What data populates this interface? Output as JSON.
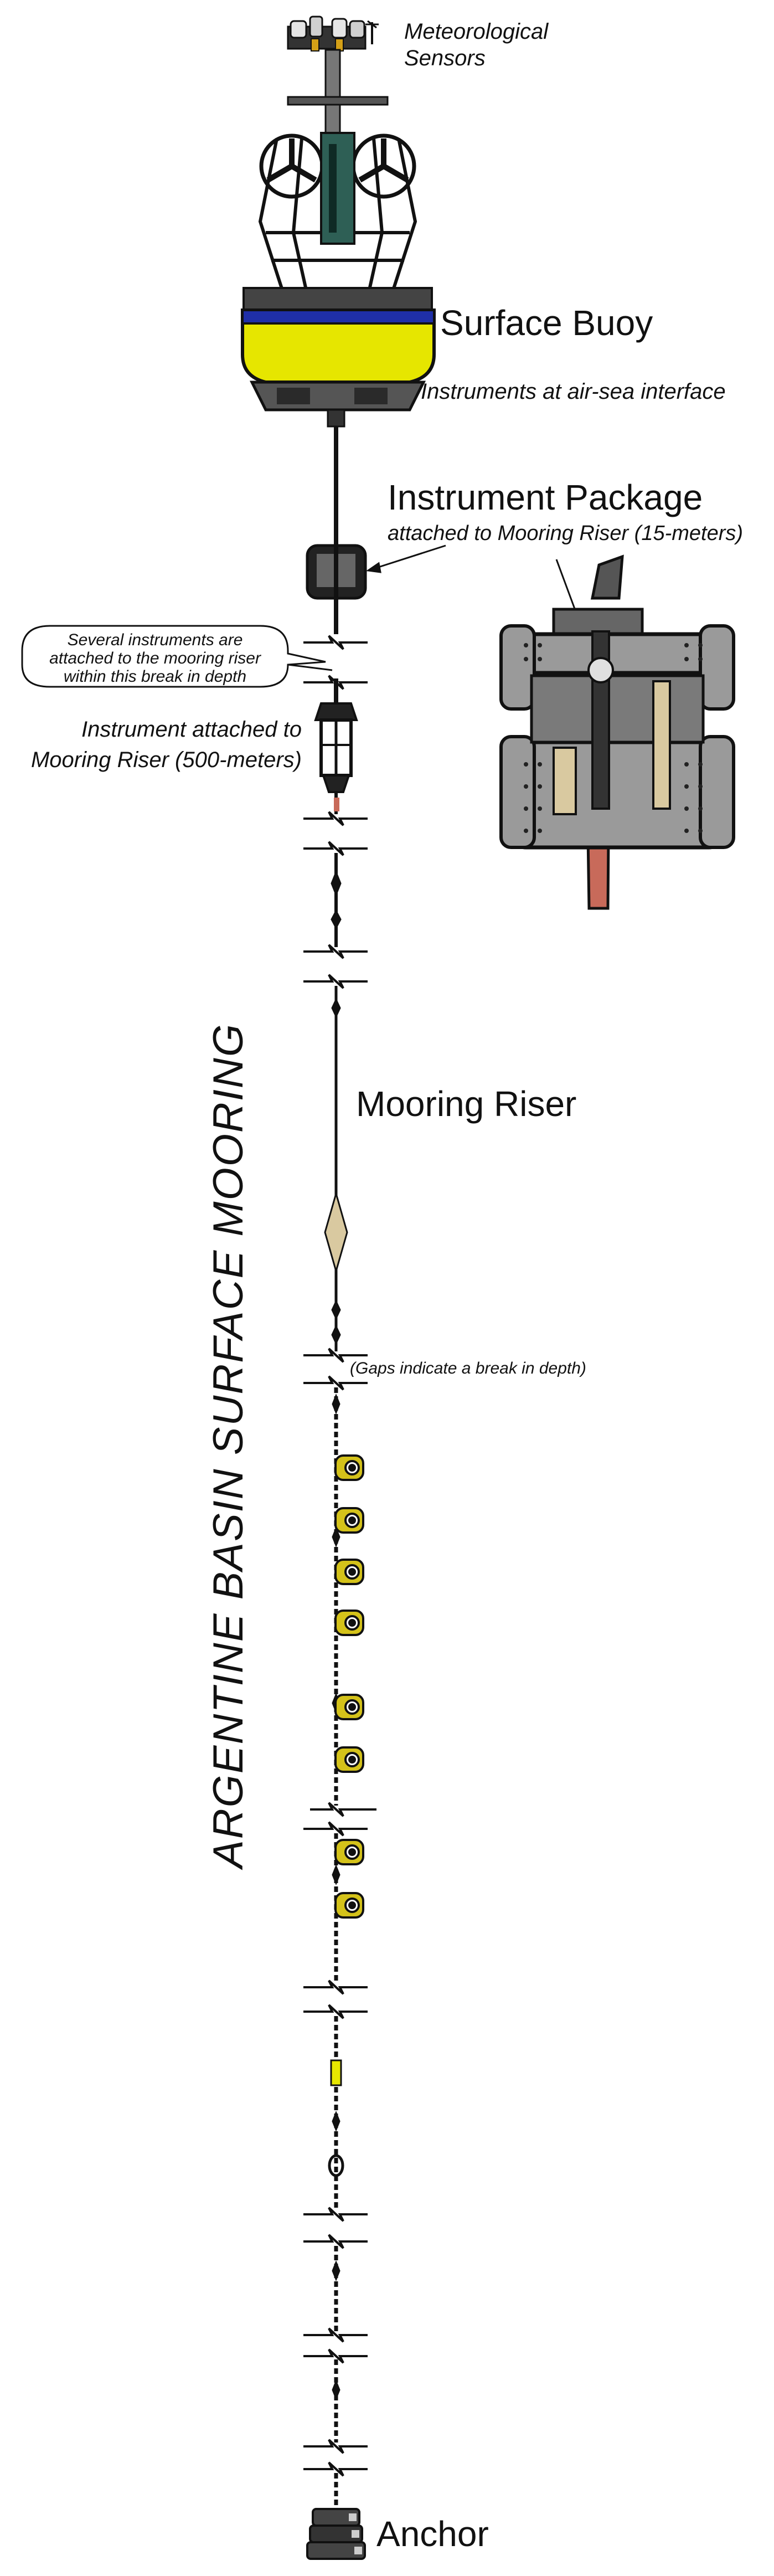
{
  "title": "ARGENTINE BASIN SURFACE MOORING",
  "labels": {
    "met_sensors_line1": "Meteorological",
    "met_sensors_line2": "Sensors",
    "surface_buoy": "Surface Buoy",
    "air_sea": "Instruments at air-sea interface",
    "instrument_package": "Instrument Package",
    "instrument_package_sub": "attached to Mooring Riser (15-meters)",
    "callout_line1": "Several instruments are",
    "callout_line2": "attached to the mooring riser",
    "callout_line3": "within this break in depth",
    "riser_instrument_line1": "Instrument attached to",
    "riser_instrument_line2": "Mooring Riser (500-meters)",
    "mooring_riser": "Mooring Riser",
    "gaps_note": "(Gaps indicate a break in depth)",
    "anchor": "Anchor"
  },
  "colors": {
    "buoy_yellow": "#e6e600",
    "buoy_blue": "#1f2fa8",
    "float_yellow": "#d4c21a",
    "frame_gray": "#9a9a9a",
    "line_black": "#111111",
    "tan": "#d9c9a0",
    "red_tail": "#c86a5a"
  }
}
